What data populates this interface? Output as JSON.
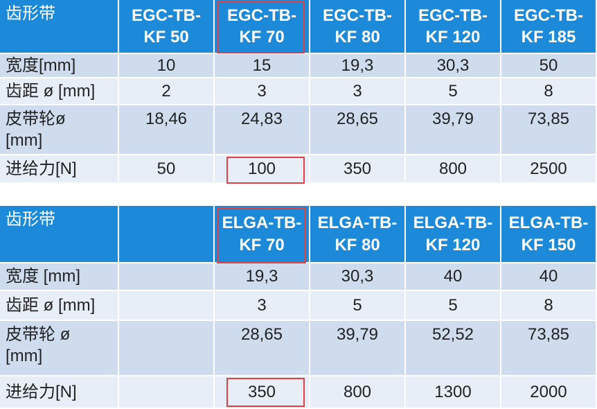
{
  "tables": [
    {
      "header": [
        "齿形带",
        "EGC-TB-\nKF 50",
        "EGC-TB-\nKF 70",
        "EGC-TB-\nKF 80",
        "EGC-TB-\nKF 120",
        "EGC-TB-\nKF 185"
      ],
      "rows": [
        [
          "宽度[mm]",
          "10",
          "15",
          "19,3",
          "30,3",
          "50"
        ],
        [
          "齿距 ø [mm]",
          "2",
          "3",
          "3",
          "5",
          "8"
        ],
        [
          "皮带轮ø\n[mm]",
          "18,46",
          "24,83",
          "28,65",
          "39,79",
          "73,85"
        ],
        [
          "进给力[N]",
          "50",
          "100",
          "350",
          "800",
          "2500"
        ]
      ]
    },
    {
      "header": [
        "齿形带",
        null,
        "ELGA-TB-\nKF 70",
        "ELGA-TB-\nKF 80",
        "ELGA-TB-\nKF 120",
        "ELGA-TB-\nKF 150"
      ],
      "rows": [
        [
          "宽度 [mm]",
          null,
          "19,3",
          "30,3",
          "40",
          "40"
        ],
        [
          "齿距 ø [mm]",
          null,
          "3",
          "5",
          "5",
          "8"
        ],
        [
          "皮带轮 ø\n[mm]",
          null,
          "28,65",
          "39,79",
          "52,52",
          "73,85"
        ],
        [
          "进给力[N]",
          null,
          "350",
          "800",
          "1300",
          "2000"
        ]
      ]
    }
  ]
}
